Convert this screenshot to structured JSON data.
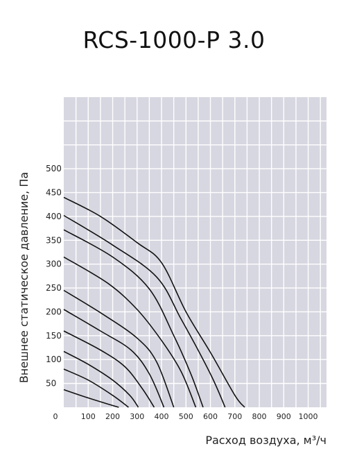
{
  "chart_data": {
    "type": "line",
    "title": "RCS-1000-P 3.0",
    "xlabel": "Расход воздуха, м³/ч",
    "ylabel": "Внешнее статическое давление, Па",
    "xlim": [
      0,
      1075
    ],
    "ylim": [
      0,
      650
    ],
    "x_ticks": [
      100,
      200,
      300,
      400,
      500,
      600,
      700,
      800,
      900,
      1000
    ],
    "y_ticks": [
      0,
      50,
      100,
      150,
      200,
      250,
      300,
      350,
      400,
      450,
      500
    ],
    "grid": true,
    "background": "#d7d7e1",
    "series": [
      {
        "values": [
          [
            0,
            37
          ],
          [
            80,
            23
          ],
          [
            160,
            10
          ],
          [
            225,
            0
          ]
        ]
      },
      {
        "values": [
          [
            0,
            80
          ],
          [
            100,
            57
          ],
          [
            200,
            25
          ],
          [
            265,
            0
          ]
        ]
      },
      {
        "values": [
          [
            0,
            117
          ],
          [
            100,
            90
          ],
          [
            200,
            57
          ],
          [
            270,
            25
          ],
          [
            305,
            0
          ]
        ]
      },
      {
        "values": [
          [
            0,
            160
          ],
          [
            150,
            120
          ],
          [
            250,
            85
          ],
          [
            320,
            40
          ],
          [
            370,
            0
          ]
        ]
      },
      {
        "values": [
          [
            0,
            205
          ],
          [
            150,
            160
          ],
          [
            275,
            120
          ],
          [
            350,
            70
          ],
          [
            410,
            0
          ]
        ]
      },
      {
        "values": [
          [
            0,
            245
          ],
          [
            160,
            195
          ],
          [
            300,
            145
          ],
          [
            380,
            95
          ],
          [
            450,
            0
          ]
        ]
      },
      {
        "values": [
          [
            0,
            315
          ],
          [
            180,
            260
          ],
          [
            300,
            205
          ],
          [
            400,
            140
          ],
          [
            480,
            75
          ],
          [
            540,
            0
          ]
        ]
      },
      {
        "values": [
          [
            0,
            372
          ],
          [
            200,
            315
          ],
          [
            350,
            248
          ],
          [
            450,
            150
          ],
          [
            520,
            70
          ],
          [
            570,
            0
          ]
        ]
      },
      {
        "values": [
          [
            0,
            402
          ],
          [
            200,
            340
          ],
          [
            380,
            273
          ],
          [
            480,
            185
          ],
          [
            600,
            70
          ],
          [
            660,
            0
          ]
        ]
      },
      {
        "values": [
          [
            0,
            440
          ],
          [
            150,
            400
          ],
          [
            300,
            345
          ],
          [
            400,
            303
          ],
          [
            500,
            200
          ],
          [
            600,
            115
          ],
          [
            700,
            25
          ],
          [
            740,
            0
          ]
        ]
      }
    ]
  },
  "x_axis_zero_label": "0"
}
